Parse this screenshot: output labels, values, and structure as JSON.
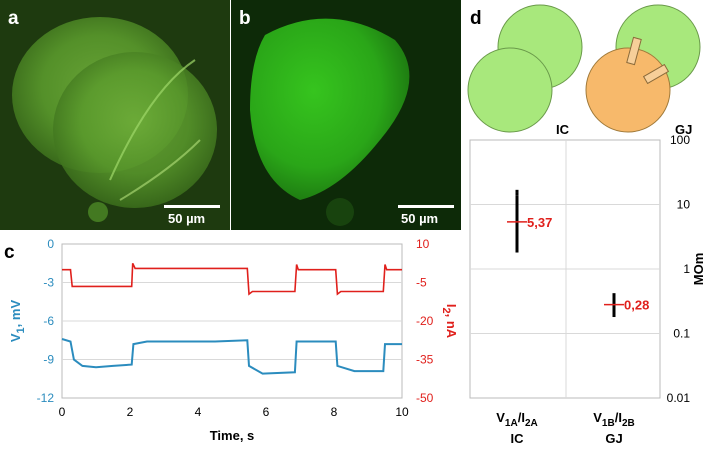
{
  "panels": {
    "a": {
      "letter": "a",
      "scale_bar": "50 µm"
    },
    "b": {
      "letter": "b",
      "scale_bar": "50 µm"
    },
    "c": {
      "letter": "c"
    },
    "d": {
      "letter": "d",
      "diagram_labels": {
        "ic": "IC",
        "gj": "GJ"
      }
    }
  },
  "colors": {
    "voltage_trace": "#2b8cbe",
    "current_trace": "#e0201c",
    "cell_green": "#a8e87c",
    "cell_orange": "#f7b96b",
    "fluorescence": "#4fa82a"
  },
  "chart_data": [
    {
      "type": "line",
      "panel": "c",
      "xlabel": "Time, s",
      "ylabel_left": {
        "main": "V",
        "sub": "1",
        "unit": ", mV"
      },
      "ylabel_right": {
        "main": "I",
        "sub": "2",
        "unit": ", nA"
      },
      "xlim": [
        0,
        10
      ],
      "ylim_left": [
        -12,
        0
      ],
      "ylim_right": [
        -50,
        10
      ],
      "x_ticks": [
        "0",
        "2",
        "4",
        "6",
        "8",
        "10"
      ],
      "y_ticks_left": [
        "0",
        "-3",
        "-6",
        "-9",
        "-12"
      ],
      "y_ticks_right": [
        "10",
        "-5",
        "-20",
        "-35",
        "-50"
      ],
      "series": [
        {
          "axis": "left",
          "x": [
            0,
            0.25,
            0.35,
            0.6,
            1.0,
            1.5,
            2.05,
            2.1,
            2.5,
            3.5,
            4.5,
            5.45,
            5.5,
            5.9,
            6.85,
            6.9,
            7.5,
            8.05,
            8.1,
            8.6,
            9.45,
            9.5,
            10.0
          ],
          "y": [
            -7.4,
            -7.6,
            -9.0,
            -9.5,
            -9.6,
            -9.5,
            -9.4,
            -7.8,
            -7.6,
            -7.6,
            -7.6,
            -7.5,
            -9.5,
            -10.1,
            -10.0,
            -7.6,
            -7.6,
            -7.6,
            -9.5,
            -9.9,
            -9.9,
            -7.8,
            -7.8
          ]
        },
        {
          "axis": "right",
          "x": [
            0,
            0.25,
            0.3,
            2.05,
            2.08,
            2.15,
            5.45,
            5.5,
            5.6,
            6.85,
            6.9,
            6.95,
            8.05,
            8.1,
            8.2,
            9.45,
            9.5,
            9.55,
            10.0
          ],
          "y": [
            0,
            0,
            -6.5,
            -6.5,
            2.5,
            0.5,
            0.5,
            -9.5,
            -8.5,
            -8.5,
            2,
            0,
            0,
            -9.5,
            -8.5,
            -8.5,
            2,
            0,
            0
          ]
        }
      ]
    },
    {
      "type": "scatter",
      "panel": "d",
      "ylabel": "MOm",
      "y_scale": "log",
      "ylim": [
        0.01,
        100
      ],
      "y_ticks": [
        "100",
        "10",
        "1",
        "0.1",
        "0.01"
      ],
      "categories": [
        {
          "main": "V",
          "sub1": "1A",
          "slash": "/I",
          "sub2": "2A",
          "group": "IC"
        },
        {
          "main": "V",
          "sub1": "1B",
          "slash": "/I",
          "sub2": "2B",
          "group": "GJ"
        }
      ],
      "mean_labels": [
        "5,37",
        "0,28"
      ],
      "series": [
        {
          "category": 0,
          "mean": 5.37,
          "values": [
            1.9,
            2.1,
            2.3,
            2.5,
            2.7,
            2.9,
            3.1,
            3.3,
            3.5,
            3.8,
            4.0,
            4.2,
            4.5,
            4.8,
            5.0,
            5.4,
            5.8,
            6.2,
            6.8,
            7.5,
            8.2,
            9.0,
            10.0,
            11.0,
            12.0,
            13.0,
            14.5,
            16.0
          ]
        },
        {
          "category": 1,
          "mean": 0.28,
          "values": [
            0.19,
            0.21,
            0.23,
            0.25,
            0.27,
            0.29,
            0.31,
            0.34,
            0.37,
            0.4
          ]
        }
      ]
    }
  ]
}
